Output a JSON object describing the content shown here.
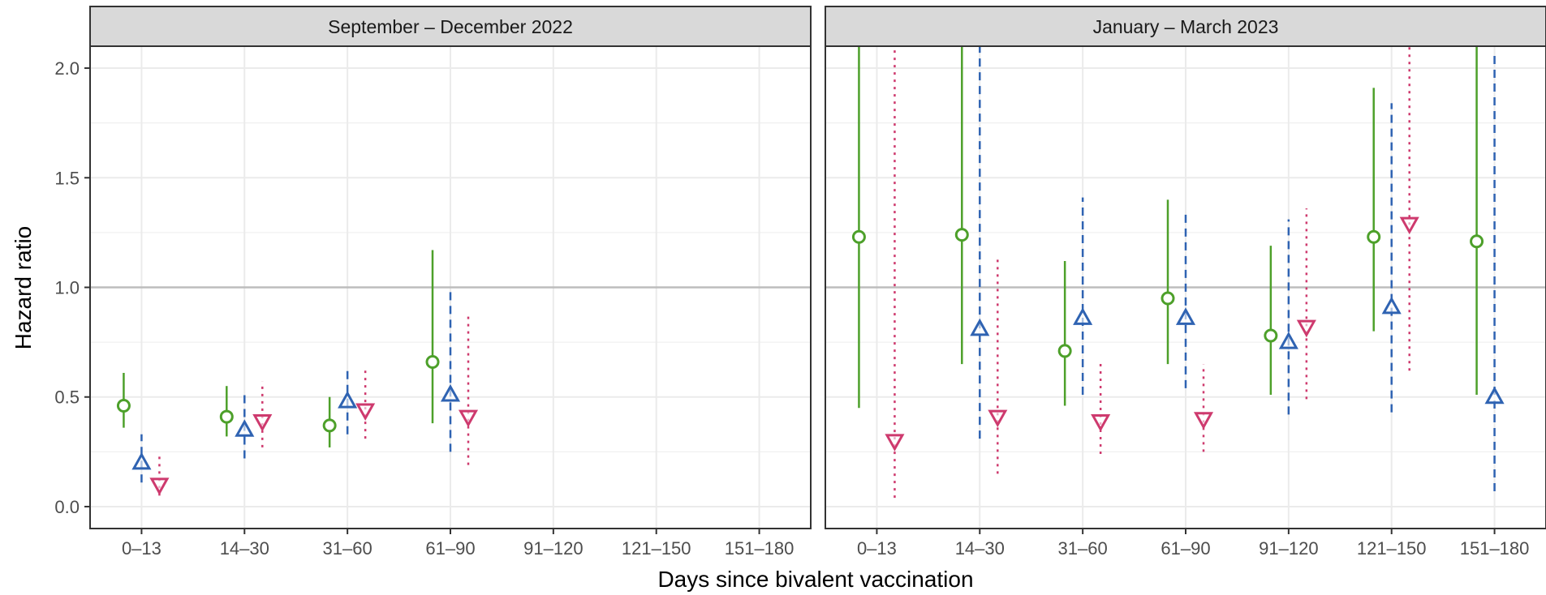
{
  "chart_data": {
    "type": "scatter",
    "subtype": "point-range",
    "xlabel": "Days since bivalent vaccination",
    "ylabel": "Hazard ratio",
    "ylim": [
      -0.1,
      2.1
    ],
    "yticks": [
      "0.0",
      "0.5",
      "1.0",
      "1.5",
      "2.0"
    ],
    "reference_line": 1.0,
    "grid": true,
    "legend": "none",
    "categories": [
      "0–13",
      "14–30",
      "31–60",
      "61–90",
      "91–120",
      "121–150",
      "151–180"
    ],
    "series_styles": [
      {
        "color": "#4DA02A",
        "marker": "circle",
        "line": "solid"
      },
      {
        "color": "#2F63B2",
        "marker": "triangle-up",
        "line": "dashed"
      },
      {
        "color": "#CE3A6E",
        "marker": "triangle-down",
        "line": "dotted"
      }
    ],
    "panels": [
      {
        "title": "September – December 2022",
        "series": [
          {
            "points": [
              {
                "x": "0–13",
                "y": 0.46,
                "lo": 0.36,
                "hi": 0.61
              },
              {
                "x": "14–30",
                "y": 0.41,
                "lo": 0.32,
                "hi": 0.55
              },
              {
                "x": "31–60",
                "y": 0.37,
                "lo": 0.27,
                "hi": 0.5
              },
              {
                "x": "61–90",
                "y": 0.66,
                "lo": 0.38,
                "hi": 1.17
              }
            ]
          },
          {
            "points": [
              {
                "x": "0–13",
                "y": 0.2,
                "lo": 0.11,
                "hi": 0.33
              },
              {
                "x": "14–30",
                "y": 0.35,
                "lo": 0.22,
                "hi": 0.51
              },
              {
                "x": "31–60",
                "y": 0.48,
                "lo": 0.33,
                "hi": 0.63
              },
              {
                "x": "61–90",
                "y": 0.51,
                "lo": 0.25,
                "hi": 0.98
              }
            ]
          },
          {
            "points": [
              {
                "x": "0–13",
                "y": 0.1,
                "lo": 0.05,
                "hi": 0.23
              },
              {
                "x": "14–30",
                "y": 0.39,
                "lo": 0.27,
                "hi": 0.57
              },
              {
                "x": "31–60",
                "y": 0.44,
                "lo": 0.31,
                "hi": 0.62
              },
              {
                "x": "61–90",
                "y": 0.41,
                "lo": 0.19,
                "hi": 0.88
              }
            ]
          }
        ]
      },
      {
        "title": "January – March 2023",
        "series": [
          {
            "points": [
              {
                "x": "0–13",
                "y": 1.23,
                "lo": 0.45,
                "hi": 2.1
              },
              {
                "x": "14–30",
                "y": 1.24,
                "lo": 0.65,
                "hi": 2.1
              },
              {
                "x": "31–60",
                "y": 0.71,
                "lo": 0.46,
                "hi": 1.12
              },
              {
                "x": "61–90",
                "y": 0.95,
                "lo": 0.65,
                "hi": 1.4
              },
              {
                "x": "91–120",
                "y": 0.78,
                "lo": 0.51,
                "hi": 1.19
              },
              {
                "x": "121–150",
                "y": 1.23,
                "lo": 0.8,
                "hi": 1.91
              },
              {
                "x": "151–180",
                "y": 1.21,
                "lo": 0.51,
                "hi": 2.1
              }
            ]
          },
          {
            "points": [
              {
                "x": "0–13",
                "y": null,
                "lo": null,
                "hi": null
              },
              {
                "x": "14–30",
                "y": 0.81,
                "lo": 0.31,
                "hi": 2.1
              },
              {
                "x": "31–60",
                "y": 0.86,
                "lo": 0.51,
                "hi": 1.41
              },
              {
                "x": "61–90",
                "y": 0.86,
                "lo": 0.54,
                "hi": 1.35
              },
              {
                "x": "91–120",
                "y": 0.75,
                "lo": 0.42,
                "hi": 1.31
              },
              {
                "x": "121–150",
                "y": 0.91,
                "lo": 0.43,
                "hi": 1.84
              },
              {
                "x": "151–180",
                "y": 0.5,
                "lo": 0.07,
                "hi": 2.07
              }
            ]
          },
          {
            "points": [
              {
                "x": "0–13",
                "y": 0.3,
                "lo": 0.04,
                "hi": 2.1
              },
              {
                "x": "14–30",
                "y": 0.41,
                "lo": 0.15,
                "hi": 1.13
              },
              {
                "x": "31–60",
                "y": 0.39,
                "lo": 0.24,
                "hi": 0.67
              },
              {
                "x": "61–90",
                "y": 0.4,
                "lo": 0.25,
                "hi": 0.65
              },
              {
                "x": "91–120",
                "y": 0.82,
                "lo": 0.49,
                "hi": 1.36
              },
              {
                "x": "121–150",
                "y": 1.29,
                "lo": 0.62,
                "hi": 2.1
              },
              {
                "x": "151–180",
                "y": null,
                "lo": null,
                "hi": null
              }
            ]
          }
        ]
      }
    ]
  }
}
